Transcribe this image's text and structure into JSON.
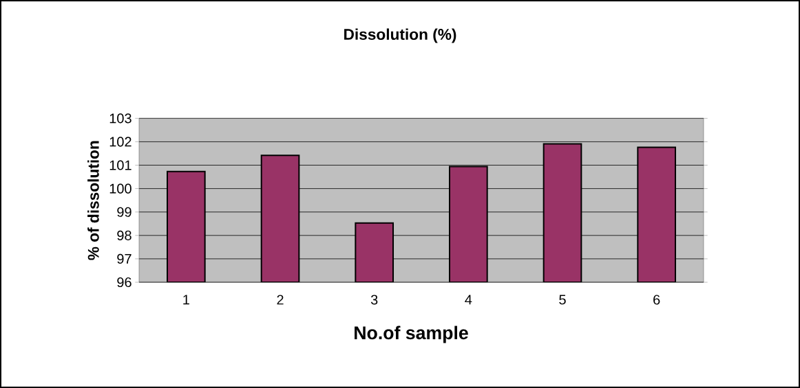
{
  "chart_data": {
    "type": "bar",
    "title": "Dissolution (%)",
    "xlabel": "No.of sample",
    "ylabel": "% of dissolution",
    "categories": [
      "1",
      "2",
      "3",
      "4",
      "5",
      "6"
    ],
    "values": [
      100.73,
      101.42,
      98.53,
      100.94,
      101.91,
      101.76
    ],
    "color": "#993366",
    "ylim": [
      96,
      103
    ],
    "yticks": [
      96,
      97,
      98,
      99,
      100,
      101,
      102,
      103
    ],
    "grid": "y"
  }
}
